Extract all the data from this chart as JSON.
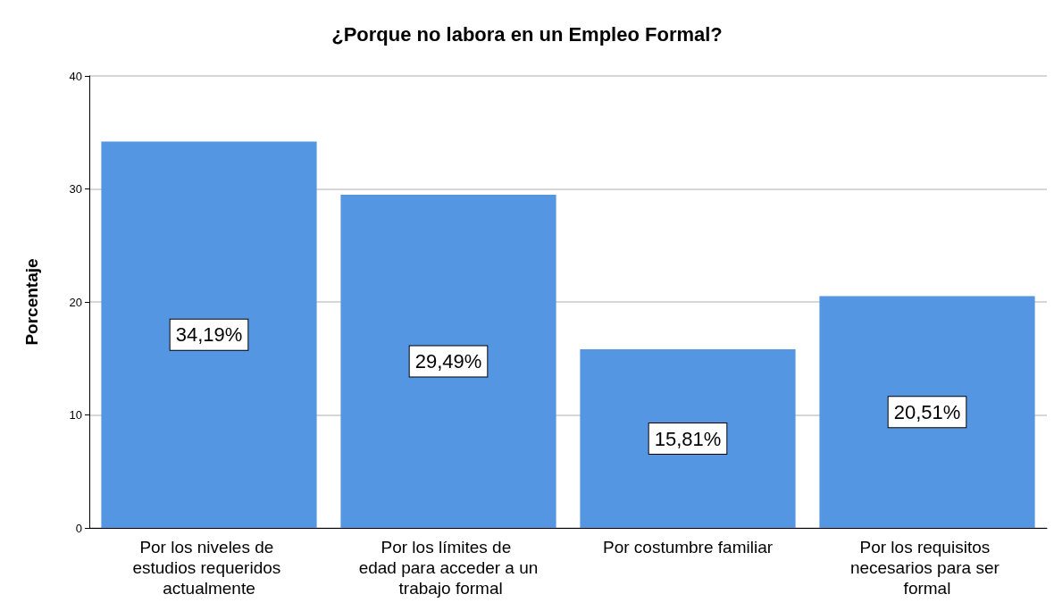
{
  "chart_data": {
    "type": "bar",
    "title": "¿Porque no labora en un Empleo Formal?",
    "ylabel": "Porcentaje",
    "categories": [
      "Por los niveles de estudios requeridos actualmente",
      "Por los límites de edad para acceder a un trabajo formal",
      "Por costumbre familiar",
      "Por los requisitos necesarios para ser formal"
    ],
    "values": [
      34.19,
      29.49,
      15.81,
      20.51
    ],
    "value_labels": [
      "34,19%",
      "29,49%",
      "15,81%",
      "20,51%"
    ],
    "color": "#5596e2",
    "ylim": [
      0,
      40
    ],
    "yticks": [
      0,
      10,
      20,
      30,
      40
    ],
    "grid": "y"
  }
}
